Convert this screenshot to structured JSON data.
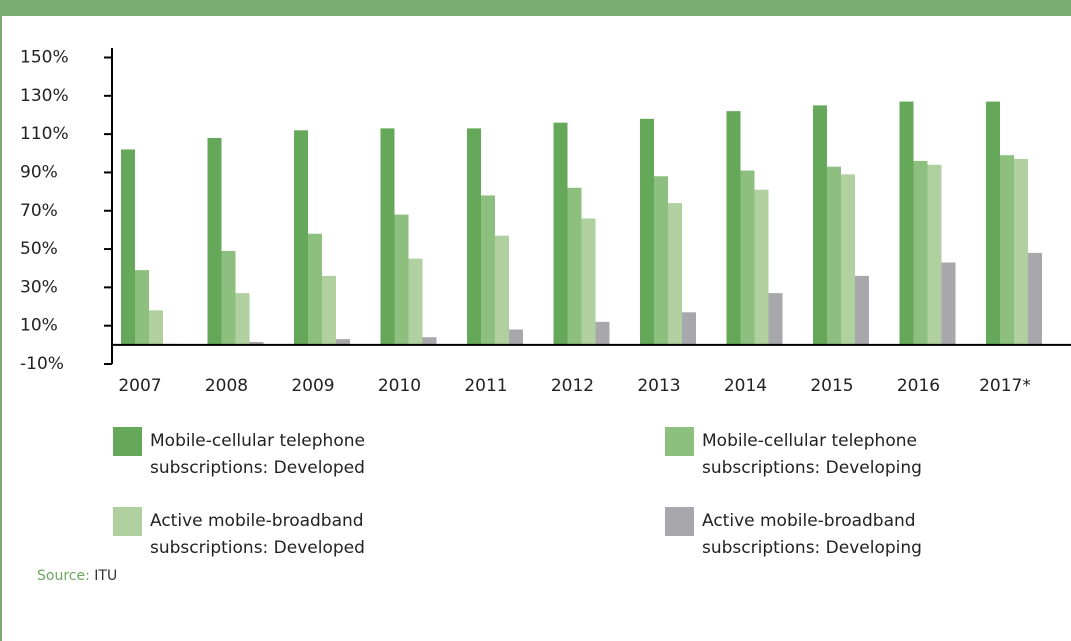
{
  "chart_data": {
    "type": "bar",
    "categories": [
      "2007",
      "2008",
      "2009",
      "2010",
      "2011",
      "2012",
      "2013",
      "2014",
      "2015",
      "2016",
      "2017*"
    ],
    "series": [
      {
        "name": "Mobile-cellular telephone subscriptions: Developed",
        "color": "#66a85a",
        "values": [
          102,
          108,
          112,
          113,
          113,
          116,
          118,
          122,
          125,
          127,
          127
        ]
      },
      {
        "name": "Mobile-cellular telephone subscriptions: Developing",
        "color": "#8dbf7f",
        "values": [
          39,
          49,
          58,
          68,
          78,
          82,
          88,
          91,
          93,
          96,
          99
        ]
      },
      {
        "name": "Active mobile-broadband subscriptions: Developed",
        "color": "#b0d0a0",
        "values": [
          18,
          27,
          36,
          45,
          57,
          66,
          74,
          81,
          89,
          94,
          97
        ]
      },
      {
        "name": "Active mobile-broadband subscriptions: Developing",
        "color": "#a8a8ac",
        "values": [
          0.5,
          1.5,
          3,
          4,
          8,
          12,
          17,
          27,
          36,
          43,
          48
        ]
      }
    ],
    "ylim": [
      -10,
      150
    ],
    "yticks": [
      {
        "value": -10,
        "label": "-10%"
      },
      {
        "value": 10,
        "label": "10%"
      },
      {
        "value": 30,
        "label": "30%"
      },
      {
        "value": 50,
        "label": "50%"
      },
      {
        "value": 70,
        "label": "70%"
      },
      {
        "value": 90,
        "label": "90%"
      },
      {
        "value": 110,
        "label": "110%"
      },
      {
        "value": 130,
        "label": "130%"
      },
      {
        "value": 150,
        "label": "150%"
      }
    ],
    "source_label": "Source:",
    "source": "ITU"
  }
}
